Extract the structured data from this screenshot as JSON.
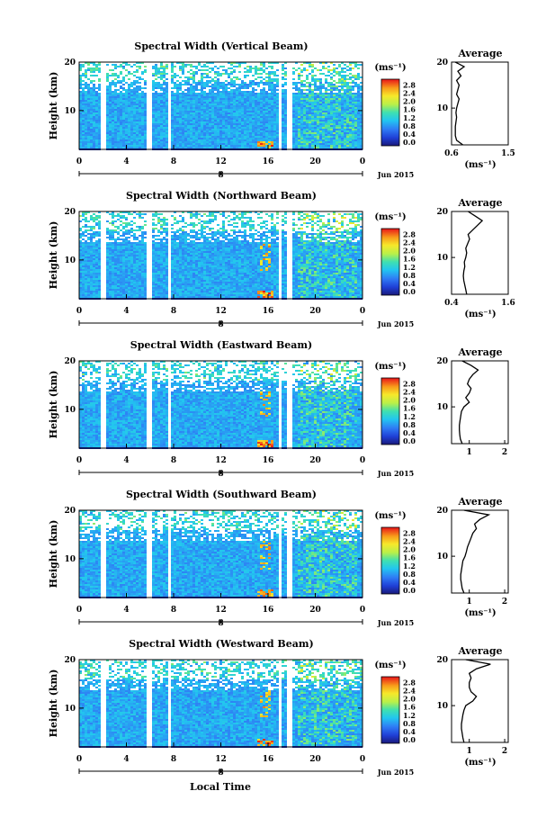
{
  "figure": {
    "x_axis_label": "Local Time",
    "date_label": "Jun 2015",
    "day_label": "8",
    "colorbar_unit": "(ms⁻¹)"
  },
  "chart_data": [
    {
      "type": "heatmap",
      "title": "Spectral Width (Vertical Beam)",
      "xlabel": "",
      "ylabel": "Height (km)",
      "xlim": [
        0,
        24
      ],
      "ylim": [
        2,
        20
      ],
      "xticks": [
        "0",
        "4",
        "8",
        "12",
        "16",
        "20",
        "0"
      ],
      "yticks": [
        "10",
        "20"
      ],
      "colorbar": {
        "ticks": [
          "0.0",
          "0.4",
          "0.8",
          "1.2",
          "1.6",
          "2.0",
          "2.4",
          "2.8"
        ],
        "range": [
          0,
          3.0
        ]
      },
      "data_gaps_hours": [
        [
          1.8,
          2.2
        ],
        [
          5.7,
          6.0
        ],
        [
          7.4,
          7.7
        ],
        [
          16.7,
          17.1
        ],
        [
          17.5,
          17.9
        ]
      ],
      "average_profile": {
        "title": "Average",
        "xlabel": "(ms⁻¹)",
        "xlim": [
          0.6,
          1.5
        ],
        "xticks": [
          "0.6",
          "1.5"
        ],
        "yticks": [
          "10",
          "20"
        ],
        "height_km": [
          2,
          3,
          4,
          5,
          6,
          7,
          8,
          9,
          10,
          11,
          12,
          13,
          14,
          15,
          16,
          17,
          18,
          19,
          20
        ],
        "width_ms": [
          0.78,
          0.68,
          0.66,
          0.66,
          0.66,
          0.67,
          0.68,
          0.67,
          0.68,
          0.7,
          0.72,
          0.68,
          0.7,
          0.72,
          0.68,
          0.75,
          0.7,
          0.8,
          0.66
        ]
      }
    },
    {
      "type": "heatmap",
      "title": "Spectral Width (Northward Beam)",
      "xlabel": "",
      "ylabel": "Height (km)",
      "xlim": [
        0,
        24
      ],
      "ylim": [
        2,
        20
      ],
      "xticks": [
        "0",
        "4",
        "8",
        "12",
        "16",
        "20",
        "0"
      ],
      "yticks": [
        "10",
        "20"
      ],
      "colorbar": {
        "ticks": [
          "0.0",
          "0.4",
          "0.8",
          "1.2",
          "1.6",
          "2.0",
          "2.4",
          "2.8"
        ],
        "range": [
          0,
          3.0
        ]
      },
      "data_gaps_hours": [
        [
          1.8,
          2.2
        ],
        [
          5.7,
          6.0
        ],
        [
          7.4,
          7.7
        ],
        [
          16.7,
          17.1
        ],
        [
          17.5,
          17.9
        ]
      ],
      "average_profile": {
        "title": "Average",
        "xlabel": "(ms⁻¹)",
        "xlim": [
          0.4,
          1.6
        ],
        "xticks": [
          "0.4",
          "1.6"
        ],
        "yticks": [
          "10",
          "20"
        ],
        "height_km": [
          2,
          3,
          4,
          5,
          6,
          7,
          8,
          9,
          10,
          11,
          12,
          13,
          14,
          15,
          16,
          17,
          18,
          19,
          20
        ],
        "width_ms": [
          0.72,
          0.7,
          0.68,
          0.66,
          0.65,
          0.66,
          0.68,
          0.67,
          0.7,
          0.72,
          0.7,
          0.74,
          0.78,
          0.75,
          0.85,
          0.95,
          1.05,
          0.9,
          0.75
        ]
      }
    },
    {
      "type": "heatmap",
      "title": "Spectral Width (Eastward Beam)",
      "xlabel": "",
      "ylabel": "Height (km)",
      "xlim": [
        0,
        24
      ],
      "ylim": [
        2,
        20
      ],
      "xticks": [
        "0",
        "4",
        "8",
        "12",
        "16",
        "20",
        "0"
      ],
      "yticks": [
        "10",
        "20"
      ],
      "colorbar": {
        "ticks": [
          "0.0",
          "0.4",
          "0.8",
          "1.2",
          "1.6",
          "2.0",
          "2.4",
          "2.8"
        ],
        "range": [
          0,
          3.0
        ]
      },
      "data_gaps_hours": [
        [
          1.8,
          2.2
        ],
        [
          5.7,
          6.0
        ],
        [
          7.4,
          7.7
        ],
        [
          16.7,
          17.1
        ],
        [
          17.5,
          17.9
        ]
      ],
      "average_profile": {
        "title": "Average",
        "xlabel": "",
        "xlim": [
          0.5,
          2.1
        ],
        "xticks": [
          "1",
          "2"
        ],
        "yticks": [
          "10",
          "20"
        ],
        "height_km": [
          2,
          3,
          4,
          5,
          6,
          7,
          8,
          9,
          10,
          11,
          12,
          13,
          14,
          15,
          16,
          17,
          18,
          19,
          20
        ],
        "width_ms": [
          0.8,
          0.75,
          0.73,
          0.72,
          0.72,
          0.74,
          0.76,
          0.78,
          0.85,
          1.0,
          0.9,
          1.0,
          1.05,
          0.95,
          1.0,
          1.1,
          1.25,
          1.05,
          0.8
        ]
      }
    },
    {
      "type": "heatmap",
      "title": "Spectral Width (Southward Beam)",
      "xlabel": "",
      "ylabel": "Height (km)",
      "xlim": [
        0,
        24
      ],
      "ylim": [
        2,
        20
      ],
      "xticks": [
        "0",
        "4",
        "8",
        "12",
        "16",
        "20",
        "0"
      ],
      "yticks": [
        "10",
        "20"
      ],
      "colorbar": {
        "ticks": [
          "0.0",
          "0.4",
          "0.8",
          "1.2",
          "1.6",
          "2.0",
          "2.4",
          "2.8"
        ],
        "range": [
          0,
          3.0
        ]
      },
      "data_gaps_hours": [
        [
          1.8,
          2.2
        ],
        [
          5.7,
          6.0
        ],
        [
          7.4,
          7.7
        ],
        [
          16.7,
          17.1
        ],
        [
          17.5,
          17.9
        ]
      ],
      "average_profile": {
        "title": "Average",
        "xlabel": "(ms⁻¹)",
        "xlim": [
          0.5,
          2.1
        ],
        "xticks": [
          "1",
          "2"
        ],
        "yticks": [
          "10",
          "20"
        ],
        "height_km": [
          2,
          3,
          4,
          5,
          6,
          7,
          8,
          9,
          10,
          11,
          12,
          13,
          14,
          15,
          16,
          17,
          18,
          19,
          20
        ],
        "width_ms": [
          0.85,
          0.8,
          0.78,
          0.76,
          0.76,
          0.78,
          0.8,
          0.82,
          0.88,
          0.92,
          0.95,
          1.0,
          1.05,
          1.1,
          1.2,
          1.15,
          1.3,
          1.55,
          0.85
        ]
      }
    },
    {
      "type": "heatmap",
      "title": "Spectral Width (Westward Beam)",
      "xlabel": "Local Time",
      "ylabel": "Height (km)",
      "xlim": [
        0,
        24
      ],
      "ylim": [
        2,
        20
      ],
      "xticks": [
        "0",
        "4",
        "8",
        "12",
        "16",
        "20",
        "0"
      ],
      "yticks": [
        "10",
        "20"
      ],
      "colorbar": {
        "ticks": [
          "0.0",
          "0.4",
          "0.8",
          "1.2",
          "1.6",
          "2.0",
          "2.4",
          "2.8"
        ],
        "range": [
          0,
          3.0
        ]
      },
      "data_gaps_hours": [
        [
          1.8,
          2.2
        ],
        [
          5.7,
          6.0
        ],
        [
          7.4,
          7.7
        ],
        [
          16.7,
          17.1
        ],
        [
          17.5,
          17.9
        ]
      ],
      "average_profile": {
        "title": "Average",
        "xlabel": "(ms⁻¹)",
        "xlim": [
          0.5,
          2.1
        ],
        "xticks": [
          "1",
          "2"
        ],
        "yticks": [
          "10",
          "20"
        ],
        "height_km": [
          2,
          3,
          4,
          5,
          6,
          7,
          8,
          9,
          10,
          11,
          12,
          13,
          14,
          15,
          16,
          17,
          18,
          19,
          20
        ],
        "width_ms": [
          0.85,
          0.82,
          0.8,
          0.78,
          0.78,
          0.8,
          0.82,
          0.85,
          0.9,
          1.1,
          1.2,
          1.05,
          1.0,
          1.0,
          1.05,
          1.0,
          1.2,
          1.6,
          0.9
        ]
      }
    }
  ]
}
